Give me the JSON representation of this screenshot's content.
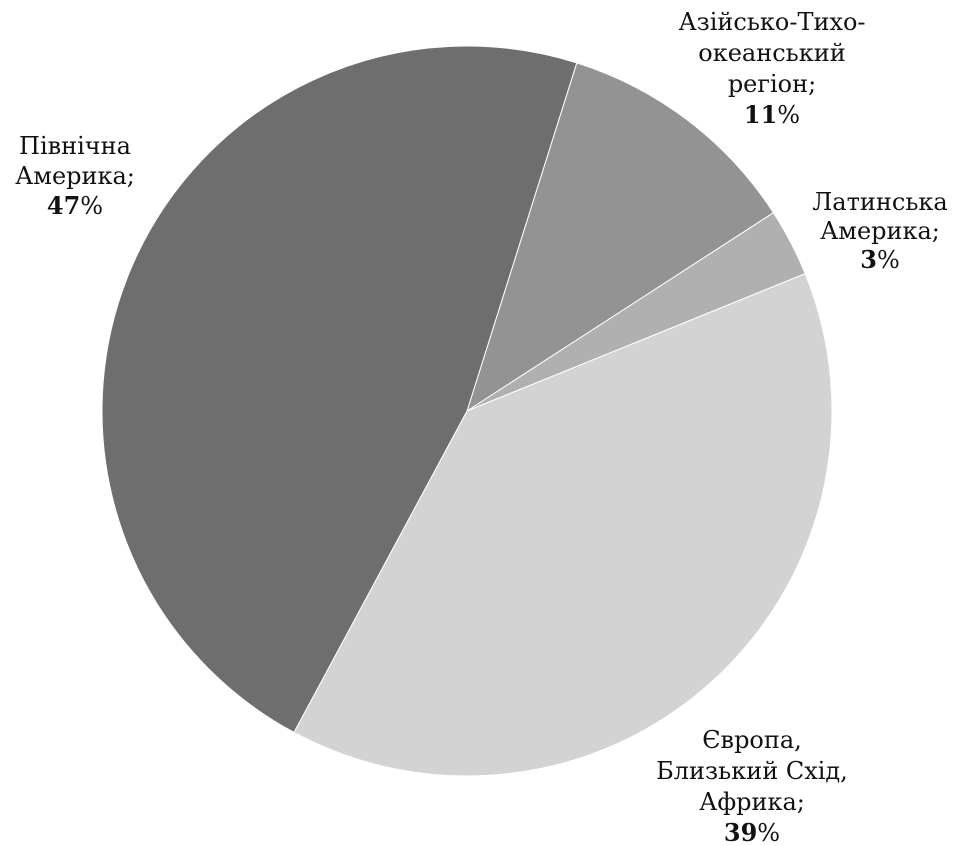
{
  "chart_data": {
    "type": "pie",
    "slices": [
      {
        "label_lines": [
          "Азійсько-Тихо-",
          "океанський",
          "регіон;"
        ],
        "value": 11,
        "value_text": "11",
        "color": "#939393"
      },
      {
        "label_lines": [
          "Латинська",
          "Америка;"
        ],
        "value": 3,
        "value_text": "3",
        "color": "#b0b0b0"
      },
      {
        "label_lines": [
          "Європа,",
          "Близький Схід,",
          "Африка;"
        ],
        "value": 39,
        "value_text": "39",
        "color": "#d3d3d3"
      },
      {
        "label_lines": [
          "Північна",
          "Америка;"
        ],
        "value": 47,
        "value_text": "47",
        "color": "#6e6e6e"
      }
    ],
    "value_suffix": "%"
  }
}
